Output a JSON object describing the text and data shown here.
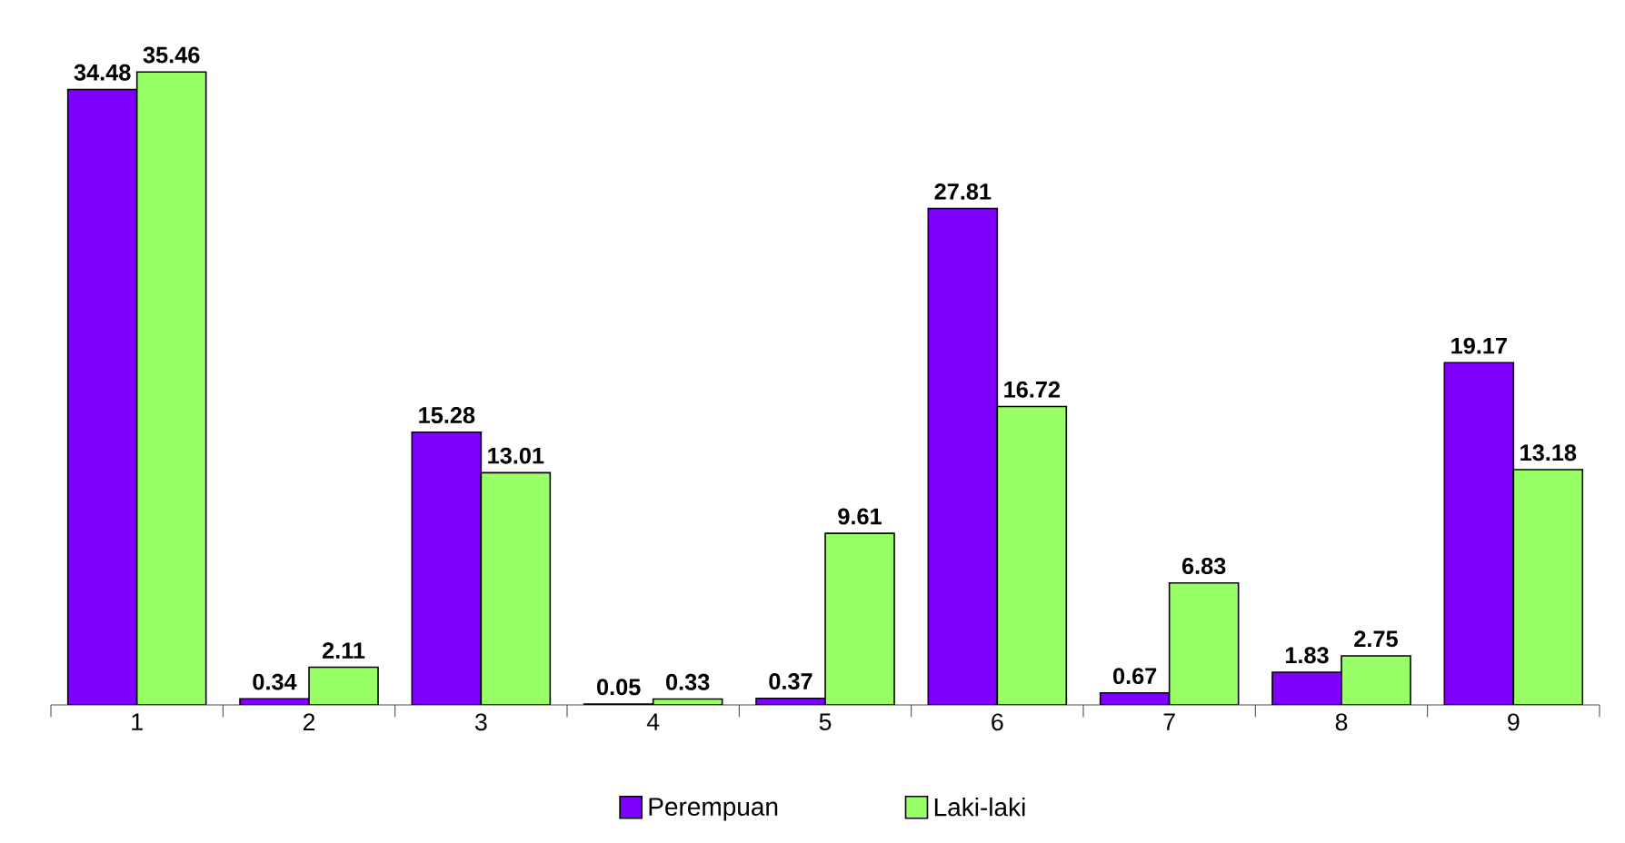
{
  "chart_data": {
    "type": "bar",
    "categories": [
      "1",
      "2",
      "3",
      "4",
      "5",
      "6",
      "7",
      "8",
      "9"
    ],
    "series": [
      {
        "name": "Perempuan",
        "color": "#7f00ff",
        "values": [
          34.48,
          0.34,
          15.28,
          0.05,
          0.37,
          27.81,
          0.67,
          1.83,
          19.17
        ]
      },
      {
        "name": "Laki-laki",
        "color": "#99ff66",
        "values": [
          35.46,
          2.11,
          13.01,
          0.33,
          9.61,
          16.72,
          6.83,
          2.75,
          13.18
        ]
      }
    ],
    "data_labels": true,
    "legend": "bottom",
    "tick_labels": "x",
    "grid": false
  }
}
